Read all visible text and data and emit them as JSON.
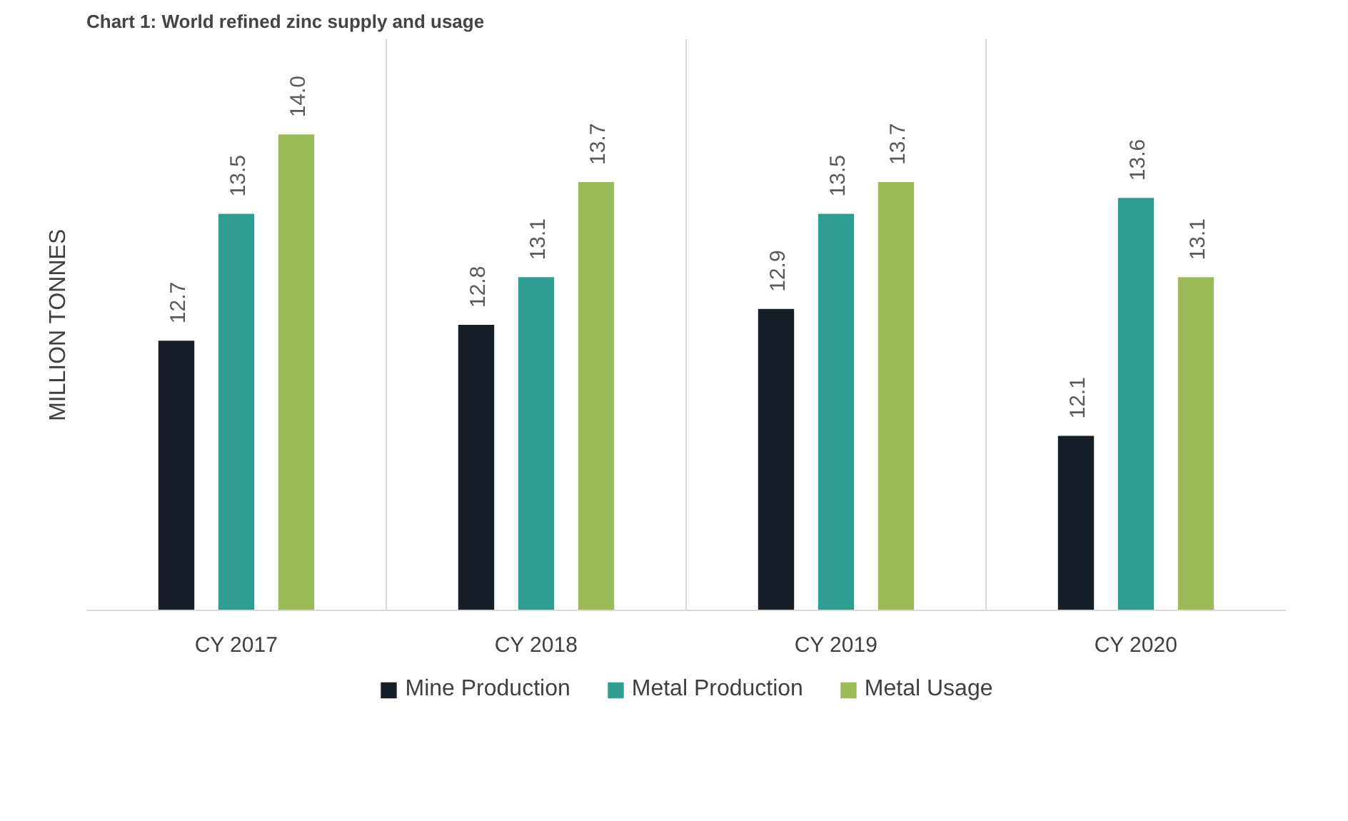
{
  "chart_data": {
    "type": "bar",
    "title": "Chart 1: World refined zinc supply and usage",
    "ylabel": "MILLION TONNES",
    "categories": [
      "CY 2017",
      "CY 2018",
      "CY 2019",
      "CY 2020"
    ],
    "series": [
      {
        "name": "Mine Production",
        "color": "#161f28",
        "values": [
          12.7,
          12.8,
          12.9,
          12.1
        ],
        "value_labels": [
          "12.7",
          "12.8",
          "12.9",
          "12.1"
        ]
      },
      {
        "name": "Metal Production",
        "color": "#2e9e92",
        "values": [
          13.5,
          13.1,
          13.5,
          13.6
        ],
        "value_labels": [
          "13.5",
          "13.1",
          "13.5",
          "13.6"
        ]
      },
      {
        "name": "Metal Usage",
        "color": "#9bbb59",
        "values": [
          14.0,
          13.7,
          13.7,
          13.1
        ],
        "value_labels": [
          "14.0",
          "13.7",
          "13.7",
          "13.1"
        ]
      }
    ],
    "ylim": [
      11,
      14.6
    ],
    "data_labels": true,
    "legend": "bottom",
    "grid": "x",
    "tick_labels": "x"
  }
}
